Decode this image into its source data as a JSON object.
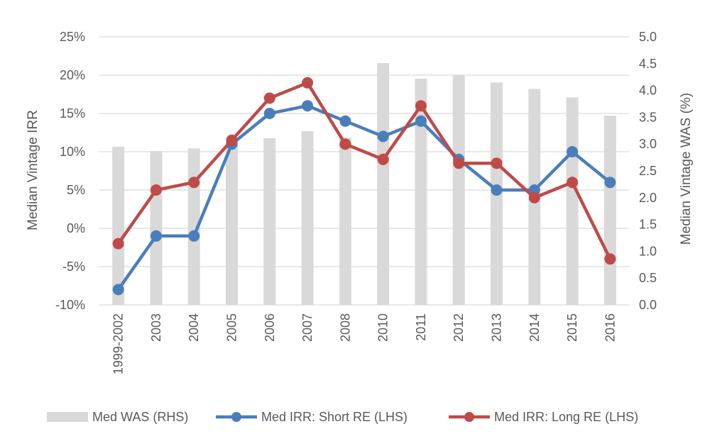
{
  "chart_data": {
    "type": "bar+line",
    "title": "",
    "categories": [
      "1999-2002",
      "2003",
      "2004",
      "2005",
      "2006",
      "2007",
      "2008",
      "2010",
      "2011",
      "2012",
      "2013",
      "2014",
      "2015",
      "2016"
    ],
    "left_axis": {
      "label": "Median Vintage IRR",
      "min": -10,
      "max": 25,
      "step": 5,
      "tick_labels": [
        "-10%",
        "-5%",
        "0%",
        "5%",
        "10%",
        "15%",
        "20%",
        "25%"
      ]
    },
    "right_axis": {
      "label": "Median Vintage WAS (%)",
      "min": 0,
      "max": 5,
      "step": 0.5,
      "tick_labels": [
        "0.0",
        "0.5",
        "1.0",
        "1.5",
        "2.0",
        "2.5",
        "3.0",
        "3.5",
        "4.0",
        "4.5",
        "5.0"
      ]
    },
    "grid": "horizontal",
    "legend_position": "bottom",
    "series": [
      {
        "name": "Med WAS (RHS)",
        "type": "bar",
        "axis": "right",
        "color": "#d9d9d9",
        "values": [
          2.95,
          2.87,
          2.92,
          3.05,
          3.11,
          3.24,
          3.12,
          4.51,
          4.22,
          4.29,
          4.15,
          4.03,
          3.87,
          3.53
        ]
      },
      {
        "name": "Med IRR: Short RE (LHS)",
        "type": "line",
        "axis": "left",
        "color": "#4a7ebb",
        "values": [
          -8,
          -1,
          -1,
          11,
          15,
          16,
          14,
          12,
          14,
          9,
          5,
          5,
          10,
          6
        ]
      },
      {
        "name": "Med IRR: Long RE (LHS)",
        "type": "line",
        "axis": "left",
        "color": "#be4b48",
        "values": [
          -2,
          5,
          6,
          11.5,
          17,
          19,
          11,
          9,
          16,
          8.5,
          8.5,
          4,
          6,
          -4
        ]
      }
    ]
  }
}
